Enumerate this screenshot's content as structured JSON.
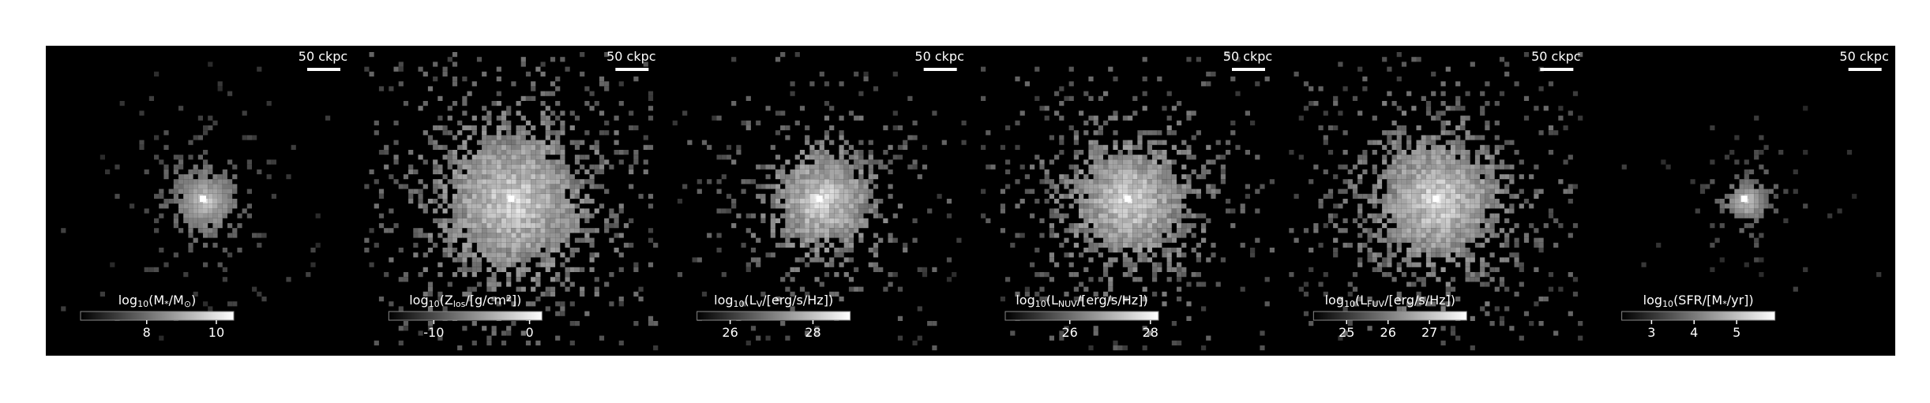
{
  "panels": [
    {
      "scalebar": "50 ckpc",
      "colorbar": {
        "label": [
          {
            "text": "log"
          },
          {
            "text": "10",
            "sub": true
          },
          {
            "text": "(M"
          },
          {
            "text": "*",
            "sub": true
          },
          {
            "text": "/M"
          },
          {
            "text": "⊙",
            "sub": true
          },
          {
            "text": ")"
          }
        ],
        "lim": [
          6.1,
          10.5
        ],
        "ticks": [
          8,
          10
        ]
      },
      "spread": 0.7
    },
    {
      "scalebar": "50 ckpc",
      "colorbar": {
        "label": [
          {
            "text": "log"
          },
          {
            "text": "10",
            "sub": true
          },
          {
            "text": "(Z"
          },
          {
            "text": "los",
            "sub": true
          },
          {
            "text": "/[g/cm"
          },
          {
            "text": "2",
            "sup": true
          },
          {
            "text": "])"
          }
        ],
        "lim": [
          -14.7,
          1.3
        ],
        "ticks": [
          -10,
          0
        ]
      },
      "spread": 1.6
    },
    {
      "scalebar": "50 ckpc",
      "colorbar": {
        "label": [
          {
            "text": "log"
          },
          {
            "text": "10",
            "sub": true
          },
          {
            "text": "(L"
          },
          {
            "text": "V",
            "sub": true
          },
          {
            "text": "/[erg/s/Hz])"
          }
        ],
        "lim": [
          25.2,
          28.9
        ],
        "ticks": [
          26,
          28
        ]
      },
      "spread": 1.1
    },
    {
      "scalebar": "50 ckpc",
      "colorbar": {
        "label": [
          {
            "text": "log"
          },
          {
            "text": "10",
            "sub": true
          },
          {
            "text": "(L"
          },
          {
            "text": "NUV",
            "sub": true
          },
          {
            "text": "/[erg/s/Hz])"
          }
        ],
        "lim": [
          24.4,
          28.2
        ],
        "ticks": [
          26,
          28
        ]
      },
      "spread": 1.3
    },
    {
      "scalebar": "50 ckpc",
      "colorbar": {
        "label": [
          {
            "text": "log"
          },
          {
            "text": "10",
            "sub": true
          },
          {
            "text": "(L"
          },
          {
            "text": "FUV",
            "sub": true
          },
          {
            "text": "/[erg/s/Hz])"
          }
        ],
        "lim": [
          24.2,
          27.9
        ],
        "ticks": [
          25,
          26,
          27
        ]
      },
      "spread": 1.4
    },
    {
      "scalebar": "50 ckpc",
      "colorbar": {
        "label": [
          {
            "text": "log"
          },
          {
            "text": "10",
            "sub": true
          },
          {
            "text": "(SFR/[M"
          },
          {
            "text": "*",
            "sub": true
          },
          {
            "text": "/yr])"
          }
        ],
        "lim": [
          2.3,
          5.9
        ],
        "ticks": [
          3,
          4,
          5
        ]
      },
      "spread": 0.45
    }
  ]
}
